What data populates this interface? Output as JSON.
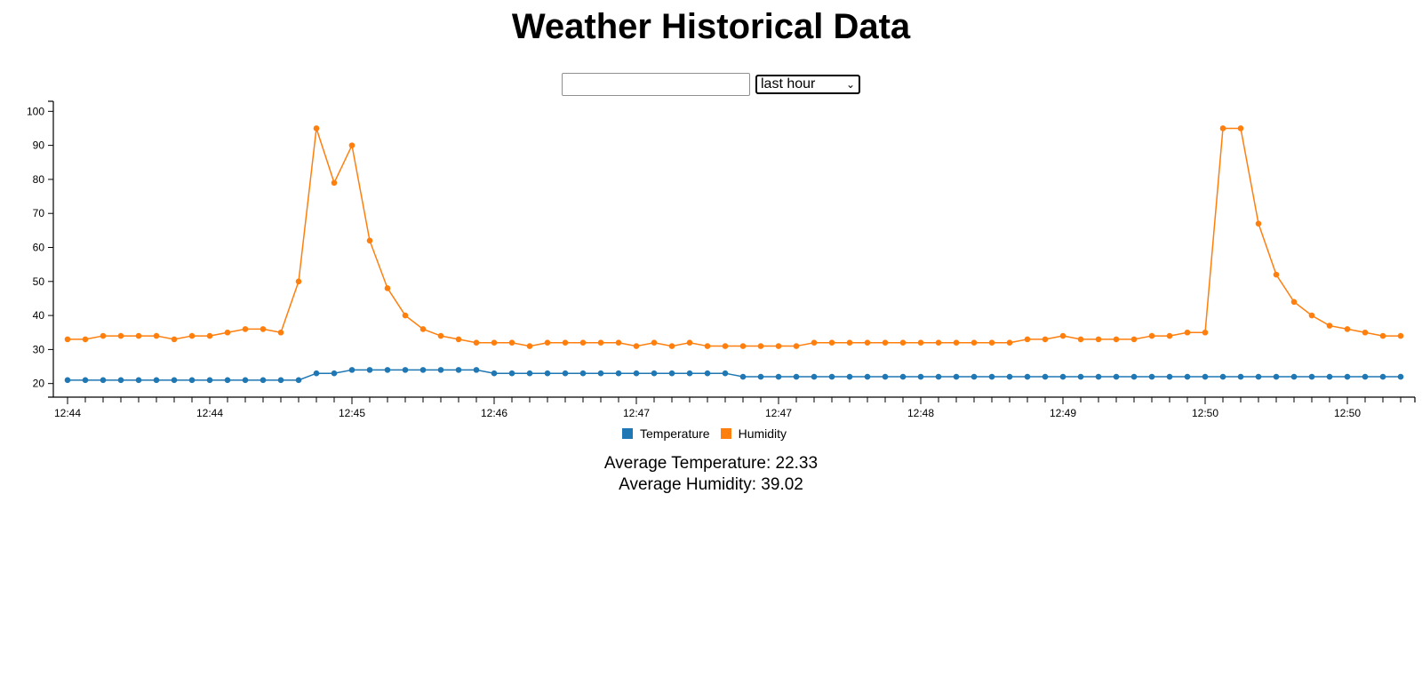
{
  "page": {
    "title": "Weather Historical Data"
  },
  "controls": {
    "search_value": "",
    "range_selected": "last hour"
  },
  "legend": [
    {
      "label": "Temperature",
      "color": "#1f77b4"
    },
    {
      "label": "Humidity",
      "color": "#ff7f0e"
    }
  ],
  "averages": {
    "temperature_label": "Average Temperature: 22.33",
    "humidity_label": "Average Humidity: 39.02"
  },
  "chart_data": {
    "type": "line",
    "ylim": [
      16,
      104
    ],
    "yticks": [
      20,
      30,
      40,
      50,
      60,
      70,
      80,
      90,
      100
    ],
    "xticks": [
      {
        "i": 0,
        "label": "12:44"
      },
      {
        "i": 8,
        "label": "12:44"
      },
      {
        "i": 16,
        "label": "12:45"
      },
      {
        "i": 24,
        "label": "12:46"
      },
      {
        "i": 32,
        "label": "12:47"
      },
      {
        "i": 40,
        "label": "12:47"
      },
      {
        "i": 48,
        "label": "12:48"
      },
      {
        "i": 56,
        "label": "12:49"
      },
      {
        "i": 64,
        "label": "12:50"
      },
      {
        "i": 72,
        "label": "12:50"
      }
    ],
    "series": [
      {
        "name": "Temperature",
        "color": "#1f77b4",
        "values": [
          21,
          21,
          21,
          21,
          21,
          21,
          21,
          21,
          21,
          21,
          21,
          21,
          21,
          21,
          23,
          23,
          24,
          24,
          24,
          24,
          24,
          24,
          24,
          24,
          23,
          23,
          23,
          23,
          23,
          23,
          23,
          23,
          23,
          23,
          23,
          23,
          23,
          23,
          22,
          22,
          22,
          22,
          22,
          22,
          22,
          22,
          22,
          22,
          22,
          22,
          22,
          22,
          22,
          22,
          22,
          22,
          22,
          22,
          22,
          22,
          22,
          22,
          22,
          22,
          22,
          22,
          22,
          22,
          22,
          22,
          22,
          22,
          22,
          22,
          22,
          22
        ]
      },
      {
        "name": "Humidity",
        "color": "#ff7f0e",
        "values": [
          33,
          33,
          34,
          34,
          34,
          34,
          33,
          34,
          34,
          35,
          36,
          36,
          35,
          50,
          95,
          79,
          90,
          62,
          48,
          40,
          36,
          34,
          33,
          32,
          32,
          32,
          31,
          32,
          32,
          32,
          32,
          32,
          31,
          32,
          31,
          32,
          31,
          31,
          31,
          31,
          31,
          31,
          32,
          32,
          32,
          32,
          32,
          32,
          32,
          32,
          32,
          32,
          32,
          32,
          33,
          33,
          34,
          33,
          33,
          33,
          33,
          34,
          34,
          35,
          35,
          95,
          95,
          67,
          52,
          44,
          40,
          37,
          36,
          35,
          34,
          34
        ]
      }
    ]
  }
}
